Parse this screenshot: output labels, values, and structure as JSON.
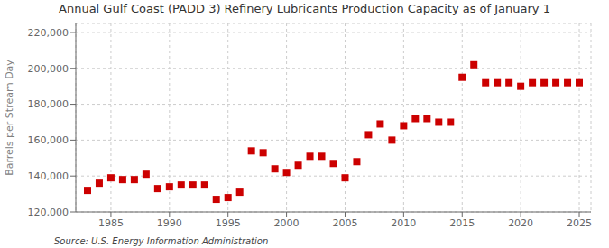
{
  "chart_data": {
    "type": "scatter",
    "title": "Annual Gulf Coast (PADD 3) Refinery Lubricants Production Capacity as of January 1",
    "ylabel": "Barrels per Stream Day",
    "annotations": [
      "Source: U.S. Energy Information Administration"
    ],
    "color": "#cc0000",
    "marker": "square",
    "grid": true,
    "x": [
      1983,
      1984,
      1985,
      1986,
      1987,
      1988,
      1989,
      1990,
      1991,
      1992,
      1993,
      1994,
      1995,
      1996,
      1997,
      1998,
      1999,
      2000,
      2001,
      2002,
      2003,
      2004,
      2005,
      2006,
      2007,
      2008,
      2009,
      2010,
      2011,
      2012,
      2013,
      2014,
      2015,
      2016,
      2017,
      2018,
      2019,
      2020,
      2021,
      2022,
      2023,
      2024,
      2025
    ],
    "values": [
      132000,
      136000,
      139000,
      138000,
      138000,
      141000,
      133000,
      134000,
      135000,
      135000,
      135000,
      127000,
      128000,
      131000,
      154000,
      153000,
      144000,
      142000,
      146000,
      151000,
      151000,
      147000,
      139000,
      148000,
      163000,
      169000,
      160000,
      168000,
      172000,
      172000,
      170000,
      170000,
      195000,
      202000,
      192000,
      192000,
      192000,
      190000,
      192000,
      192000,
      192000,
      192000,
      192000
    ],
    "xlim": [
      1982,
      2026
    ],
    "ylim": [
      120000,
      225000
    ],
    "xticks": [
      1985,
      1990,
      1995,
      2000,
      2005,
      2010,
      2015,
      2020,
      2025
    ],
    "yticks": [
      {
        "value": 120000,
        "label": "120,000"
      },
      {
        "value": 140000,
        "label": "140,000"
      },
      {
        "value": 160000,
        "label": "160,000"
      },
      {
        "value": 180000,
        "label": "180,000"
      },
      {
        "value": 200000,
        "label": "200,000"
      },
      {
        "value": 220000,
        "label": "220,000"
      }
    ]
  }
}
